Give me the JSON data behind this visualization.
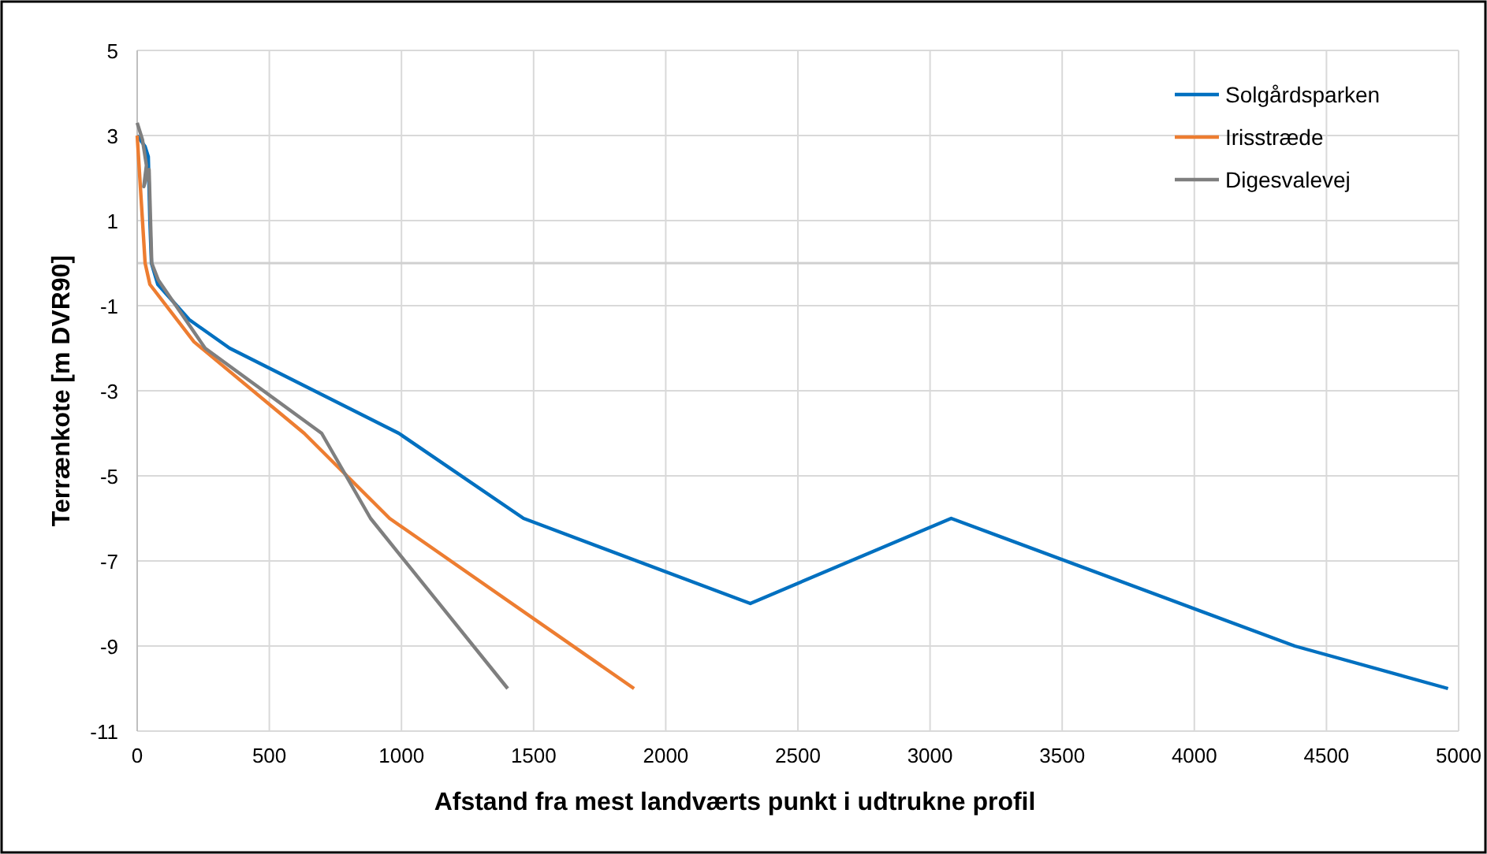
{
  "chart_data": {
    "type": "line",
    "xlabel": "Afstand fra mest landværts punkt i udtrukne profil",
    "ylabel": "Terrænkote [m DVR90]",
    "xlim": [
      0,
      5000
    ],
    "xticks": [
      0,
      500,
      1000,
      1500,
      2000,
      2500,
      3000,
      3500,
      4000,
      4500,
      5000
    ],
    "ylim": [
      -11,
      5
    ],
    "yticks": [
      -11,
      -9,
      -7,
      -5,
      -3,
      -1,
      1,
      3,
      5
    ],
    "grid": true,
    "legend": "top right",
    "marker": "none",
    "line_style": "solid",
    "ref_lines": [
      {
        "axis": "y",
        "value": 0,
        "color": "#d0d0d0"
      }
    ],
    "series": [
      {
        "name": "Solgårdsparken",
        "color": "#0070c0",
        "x": [
          0,
          30,
          42,
          48,
          54,
          78,
          197,
          350,
          990,
          1462,
          2320,
          3080,
          4380,
          4960
        ],
        "values": [
          3.0,
          2.74,
          2.5,
          1.0,
          0,
          -0.5,
          -1.33,
          -2,
          -4,
          -6,
          -8,
          -6,
          -9,
          -10
        ]
      },
      {
        "name": "Irisstræde",
        "color": "#ed7d31",
        "x": [
          0,
          20,
          30,
          48,
          215,
          632,
          955,
          1880
        ],
        "values": [
          3.0,
          1.0,
          0,
          -0.5,
          -1.85,
          -4,
          -6,
          -10
        ]
      },
      {
        "name": "Digesvalevej",
        "color": "#7f7f7f",
        "x": [
          0,
          20,
          35,
          25,
          45,
          55,
          80,
          257,
          698,
          883,
          1402
        ],
        "values": [
          3.3,
          2.9,
          2.3,
          1.8,
          2.2,
          0,
          -0.4,
          -2,
          -4,
          -6,
          -10
        ]
      }
    ]
  }
}
